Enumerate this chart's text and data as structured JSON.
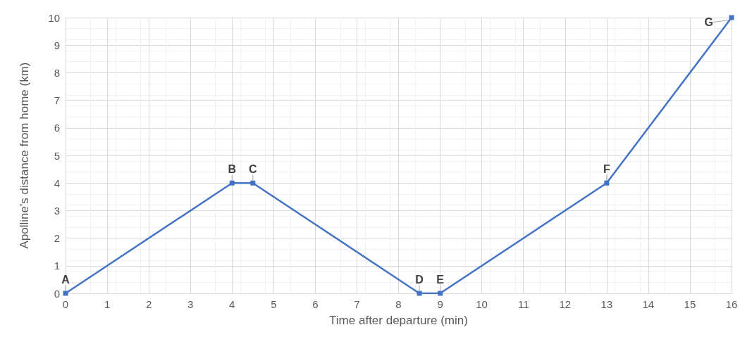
{
  "chart_data": {
    "type": "line",
    "xlabel": "Time after departure (min)",
    "ylabel": "Apolline's distance from home (km)",
    "x": [
      0,
      4,
      4.5,
      8.5,
      9,
      13,
      16
    ],
    "series": [
      {
        "color": "#4472c4",
        "values": [
          0,
          4,
          4,
          0,
          0,
          4,
          10
        ]
      }
    ],
    "xlim": [
      0,
      16
    ],
    "xticks": [
      0,
      1,
      2,
      3,
      4,
      5,
      6,
      7,
      8,
      9,
      10,
      11,
      12,
      13,
      14,
      15,
      16
    ],
    "ylim": [
      0,
      10
    ],
    "yticks": [
      0,
      1,
      2,
      3,
      4,
      5,
      6,
      7,
      8,
      9,
      10
    ],
    "grid": true,
    "marker": "square",
    "line_style": "solid",
    "annotations": [
      {
        "text": "A",
        "x": 0,
        "y": 0
      },
      {
        "text": "B",
        "x": 4,
        "y": 4
      },
      {
        "text": "C",
        "x": 4.5,
        "y": 4
      },
      {
        "text": "D",
        "x": 8.5,
        "y": 0
      },
      {
        "text": "E",
        "x": 9,
        "y": 0
      },
      {
        "text": "F",
        "x": 13,
        "y": 4
      },
      {
        "text": "G",
        "x": 16,
        "y": 10
      }
    ]
  }
}
